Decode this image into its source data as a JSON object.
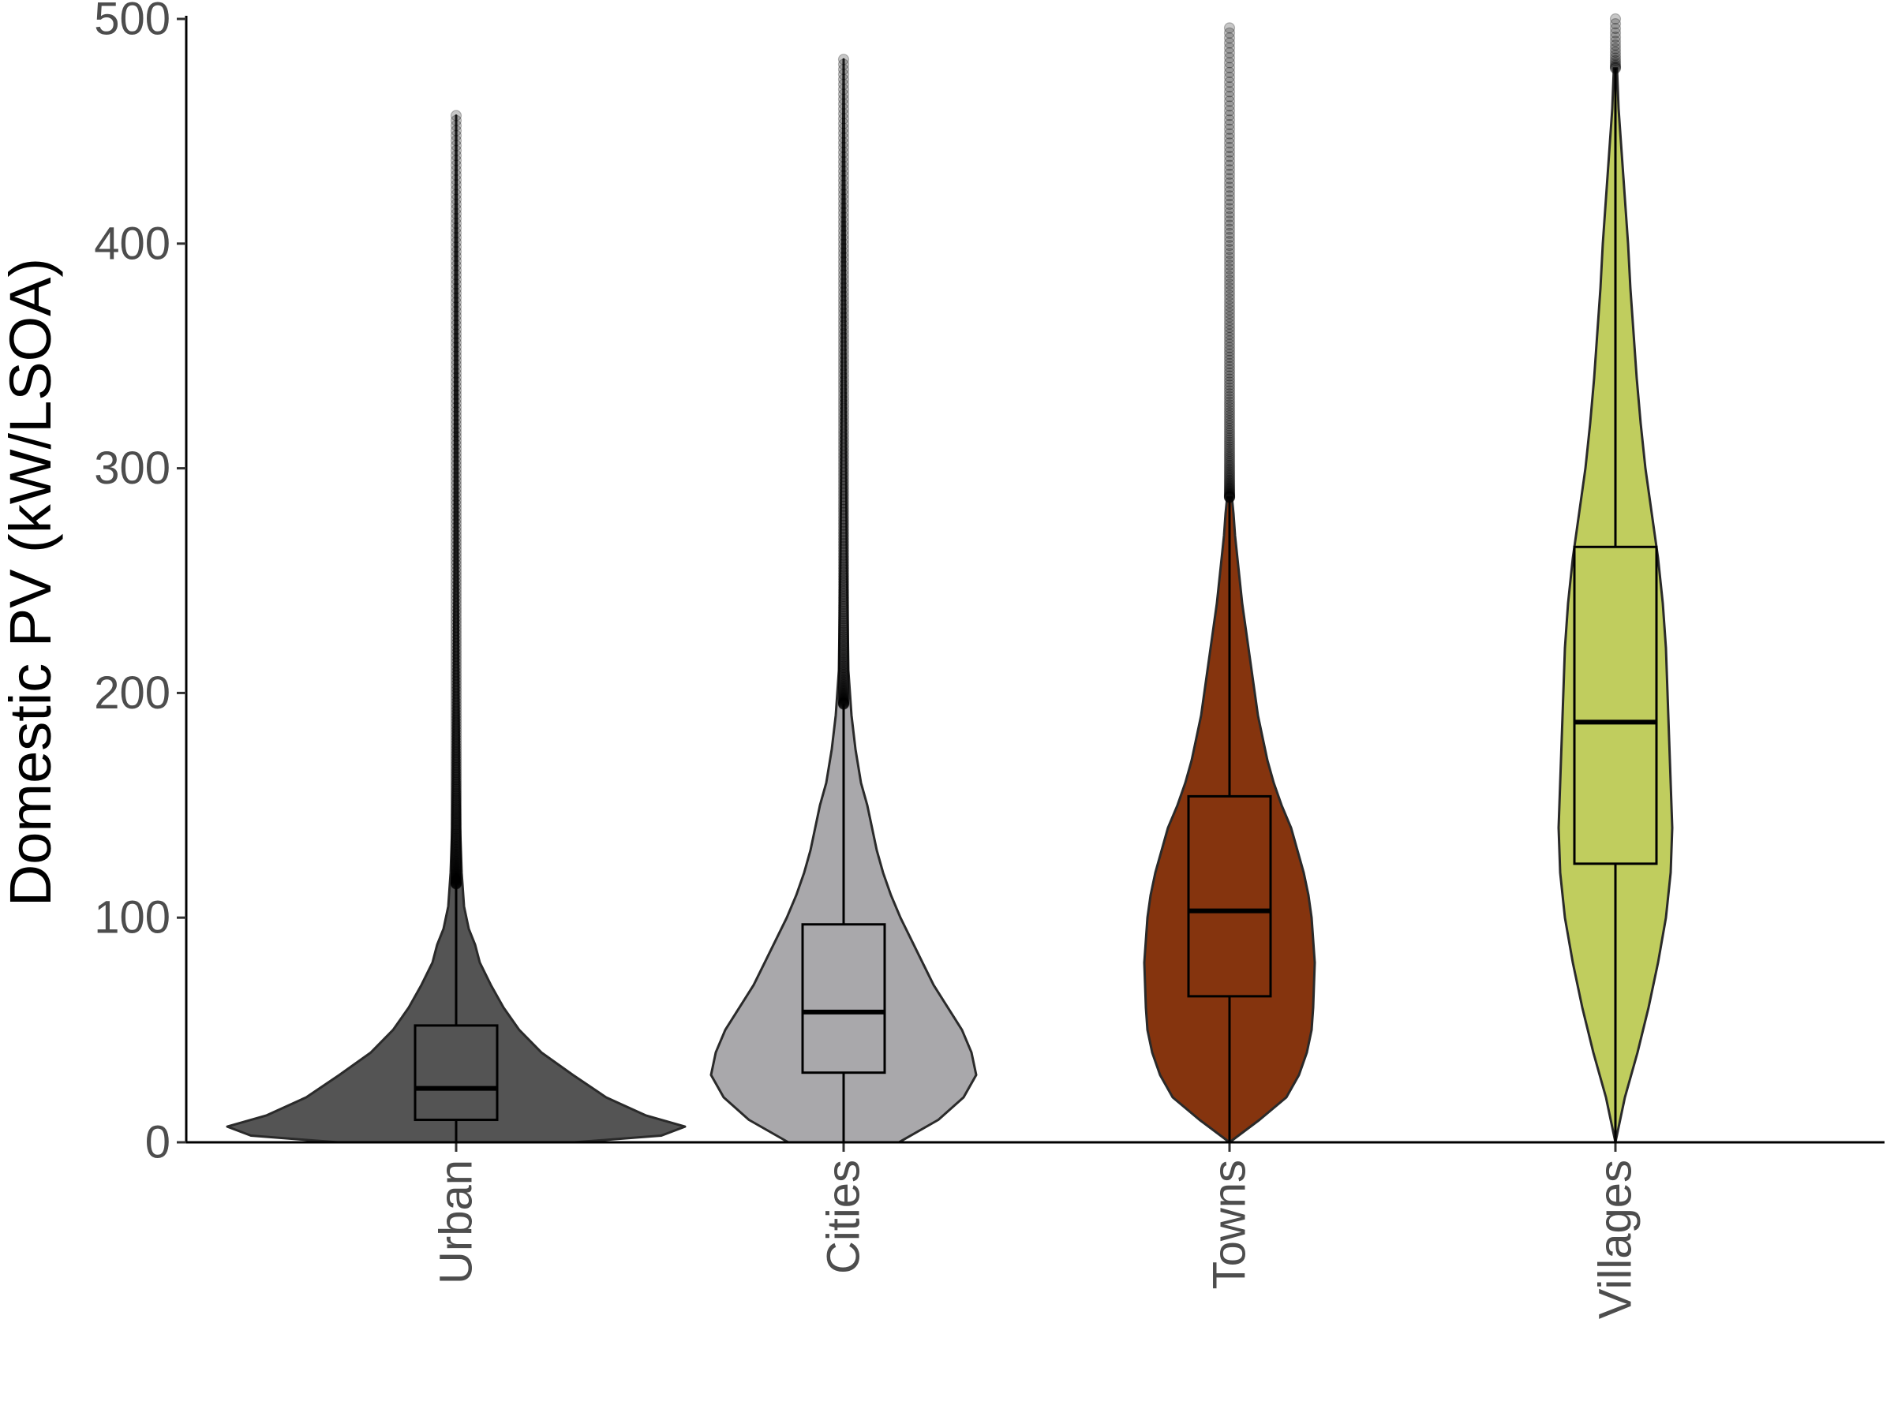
{
  "chart_data": {
    "type": "violin",
    "title": "",
    "xlabel": "",
    "ylabel": "Domestic PV (kW/LSOA)",
    "ylim": [
      0,
      500
    ],
    "yticks": [
      0,
      100,
      200,
      300,
      400,
      500
    ],
    "grid": false,
    "legend": "none",
    "categories": [
      "Urban",
      "Cities",
      "Towns",
      "Villages"
    ],
    "series": [
      {
        "category": "Urban",
        "color": "#545454",
        "box": {
          "q1": 10,
          "median": 24,
          "q3": 52,
          "whisker_low": 0,
          "whisker_high": 115
        },
        "violin": {
          "y": [
            0,
            3,
            7,
            12,
            20,
            30,
            40,
            50,
            60,
            70,
            80,
            88,
            95,
            105,
            120,
            140,
            160,
            200,
            260,
            330,
            400,
            457
          ],
          "half_width": [
            150,
            260,
            290,
            240,
            190,
            148,
            108,
            80,
            60,
            44,
            30,
            24,
            16,
            10,
            7,
            5,
            4,
            3,
            2,
            1.5,
            1,
            0
          ]
        },
        "outliers_range": [
          115,
          457
        ]
      },
      {
        "category": "Cities",
        "color": "#a9a8ab",
        "box": {
          "q1": 31,
          "median": 58,
          "q3": 97,
          "whisker_low": 0,
          "whisker_high": 195
        },
        "violin": {
          "y": [
            0,
            10,
            20,
            30,
            40,
            50,
            60,
            70,
            80,
            90,
            100,
            110,
            120,
            130,
            140,
            150,
            160,
            175,
            190,
            210,
            260,
            330,
            400,
            482
          ],
          "half_width": [
            70,
            120,
            152,
            168,
            162,
            150,
            132,
            114,
            100,
            86,
            72,
            60,
            50,
            42,
            36,
            30,
            22,
            15,
            10,
            6,
            4,
            2.5,
            1.5,
            0
          ]
        },
        "outliers_range": [
          195,
          482
        ]
      },
      {
        "category": "Towns",
        "color": "#85340e",
        "box": {
          "q1": 65,
          "median": 103,
          "q3": 154,
          "whisker_low": 0,
          "whisker_high": 287
        },
        "violin": {
          "y": [
            0,
            10,
            20,
            30,
            40,
            50,
            60,
            70,
            80,
            90,
            100,
            110,
            120,
            130,
            140,
            150,
            160,
            170,
            180,
            190,
            200,
            210,
            220,
            230,
            240,
            250,
            260,
            270,
            280,
            287
          ],
          "half_width": [
            0,
            38,
            72,
            88,
            98,
            104,
            106,
            107,
            108,
            106,
            104,
            100,
            94,
            86,
            78,
            66,
            56,
            48,
            42,
            36,
            32,
            28,
            24,
            20,
            16,
            13,
            10,
            7,
            5,
            3
          ]
        },
        "outliers_range": [
          287,
          496
        ]
      },
      {
        "category": "Villages",
        "color": "#c0cd5e",
        "box": {
          "q1": 124,
          "median": 187,
          "q3": 265,
          "whisker_low": 0,
          "whisker_high": 478
        },
        "violin": {
          "y": [
            0,
            10,
            20,
            40,
            60,
            80,
            100,
            120,
            140,
            160,
            180,
            200,
            220,
            240,
            260,
            280,
            300,
            320,
            340,
            360,
            380,
            400,
            420,
            440,
            460,
            478
          ],
          "half_width": [
            0,
            6,
            12,
            28,
            42,
            54,
            64,
            70,
            72,
            70,
            68,
            66,
            64,
            60,
            54,
            46,
            38,
            32,
            27,
            23,
            19,
            16,
            12,
            8,
            4,
            2
          ]
        },
        "outliers_range": [
          478,
          500
        ]
      }
    ]
  }
}
